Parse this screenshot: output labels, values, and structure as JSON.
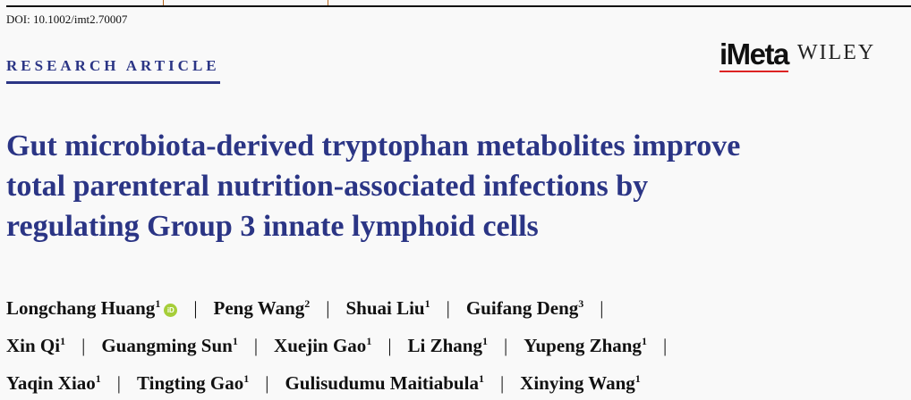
{
  "doi": "DOI: 10.1002/imt2.70007",
  "article_type": "RESEARCH ARTICLE",
  "journal_logo": "iMeta",
  "publisher_logo": "WILEY",
  "title_lines": [
    "Gut microbiota-derived tryptophan metabolites improve",
    "total parenteral nutrition-associated infections by",
    "regulating Group 3 innate lymphoid cells"
  ],
  "authors": [
    {
      "name": "Longchang Huang",
      "aff": "1",
      "orcid": "iD"
    },
    {
      "name": "Peng Wang",
      "aff": "2"
    },
    {
      "name": "Shuai Liu",
      "aff": "1"
    },
    {
      "name": "Guifang Deng",
      "aff": "3"
    },
    {
      "name": "Xin Qi",
      "aff": "1"
    },
    {
      "name": "Guangming Sun",
      "aff": "1"
    },
    {
      "name": "Xuejin Gao",
      "aff": "1"
    },
    {
      "name": "Li Zhang",
      "aff": "1"
    },
    {
      "name": "Yupeng Zhang",
      "aff": "1"
    },
    {
      "name": "Yaqin Xiao",
      "aff": "1"
    },
    {
      "name": "Tingting Gao",
      "aff": "1"
    },
    {
      "name": "Gulisudumu Maitiabula",
      "aff": "1"
    },
    {
      "name": "Xinying Wang",
      "aff": "1"
    }
  ],
  "separator": "|",
  "colors": {
    "title": "#2b3585",
    "orcid": "#a6ce39",
    "logo_accent": "#dd2222"
  }
}
